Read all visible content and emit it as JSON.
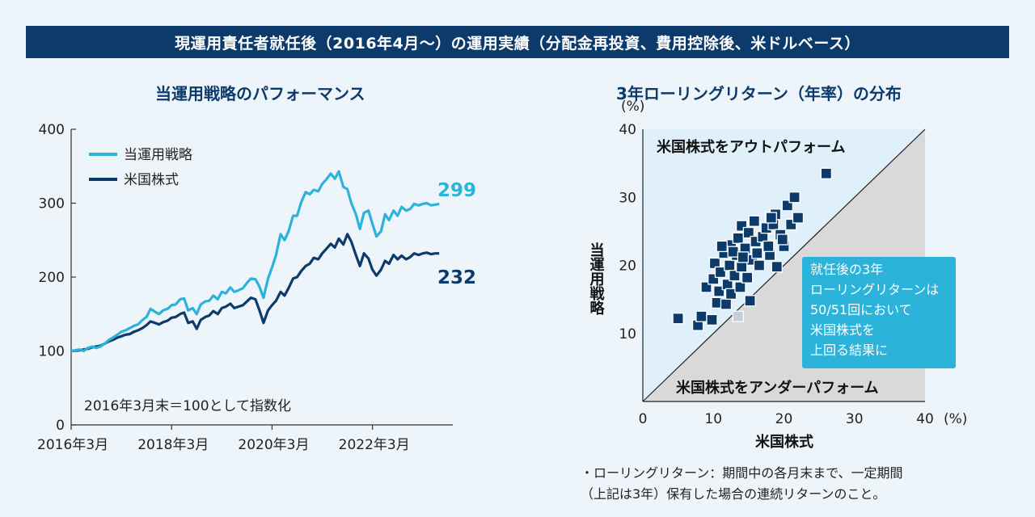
{
  "banner": "現運用責任者就任後（2016年4月〜）の運用実績（分配金再投資、費用控除後、米ドルベース）",
  "colors": {
    "banner_bg": "#0c3a6b",
    "strategy": "#2bb3d9",
    "us_stock": "#0c3a6b",
    "outperform_bg": "#dff0fa",
    "underperform_bg": "#d9d9d9",
    "callout_bg": "#2bb3d9"
  },
  "chart_data": [
    {
      "type": "line",
      "title": "当運用戦略のパフォーマンス",
      "ylim": [
        0,
        400
      ],
      "yticks": [
        "0",
        "100",
        "200",
        "300",
        "400"
      ],
      "xtick_labels": [
        "2016年3月",
        "2018年3月",
        "2020年3月",
        "2022年3月"
      ],
      "xtick_years": [
        0,
        2,
        4,
        6
      ],
      "annotation": "2016年3月末＝100として指数化",
      "series": [
        {
          "name": "当運用戦略",
          "end_label": "299",
          "x": [
            0,
            0.17,
            0.25,
            0.33,
            0.42,
            0.5,
            0.58,
            0.67,
            0.75,
            0.83,
            0.92,
            1.0,
            1.08,
            1.17,
            1.25,
            1.33,
            1.42,
            1.5,
            1.58,
            1.67,
            1.75,
            1.83,
            1.92,
            2.0,
            2.08,
            2.17,
            2.25,
            2.33,
            2.42,
            2.5,
            2.58,
            2.67,
            2.75,
            2.83,
            2.92,
            3.0,
            3.08,
            3.17,
            3.25,
            3.33,
            3.42,
            3.5,
            3.58,
            3.67,
            3.75,
            3.83,
            3.92,
            4.0,
            4.08,
            4.17,
            4.25,
            4.33,
            4.42,
            4.5,
            4.58,
            4.67,
            4.75,
            4.83,
            4.92,
            5.0,
            5.08,
            5.17,
            5.25,
            5.33,
            5.42,
            5.5,
            5.58,
            5.67,
            5.75,
            5.83,
            5.92,
            6.0,
            6.08,
            6.17,
            6.25,
            6.33,
            6.42,
            6.5,
            6.58,
            6.67,
            6.75,
            6.83,
            6.92,
            7.0,
            7.08,
            7.17,
            7.25,
            7.33
          ],
          "values": [
            100,
            102,
            100,
            104,
            106,
            104,
            106,
            110,
            115,
            118,
            122,
            126,
            128,
            131,
            134,
            136,
            142,
            146,
            157,
            153,
            150,
            155,
            157,
            162,
            163,
            170,
            171,
            155,
            158,
            150,
            163,
            167,
            168,
            175,
            170,
            180,
            178,
            186,
            180,
            182,
            185,
            192,
            198,
            197,
            187,
            172,
            198,
            213,
            230,
            258,
            250,
            262,
            283,
            283,
            301,
            315,
            312,
            318,
            316,
            326,
            332,
            340,
            333,
            343,
            322,
            319,
            300,
            285,
            265,
            287,
            290,
            272,
            255,
            262,
            285,
            277,
            290,
            283,
            295,
            290,
            292,
            299,
            297,
            299,
            300,
            297,
            298,
            299
          ]
        },
        {
          "name": "米国株式",
          "end_label": "232",
          "x": [
            0,
            0.17,
            0.25,
            0.33,
            0.42,
            0.5,
            0.58,
            0.67,
            0.75,
            0.83,
            0.92,
            1.0,
            1.08,
            1.17,
            1.25,
            1.33,
            1.42,
            1.5,
            1.58,
            1.67,
            1.75,
            1.83,
            1.92,
            2.0,
            2.08,
            2.17,
            2.25,
            2.33,
            2.42,
            2.5,
            2.58,
            2.67,
            2.75,
            2.83,
            2.92,
            3.0,
            3.08,
            3.17,
            3.25,
            3.33,
            3.42,
            3.5,
            3.58,
            3.67,
            3.75,
            3.83,
            3.92,
            4.0,
            4.08,
            4.17,
            4.25,
            4.33,
            4.42,
            4.5,
            4.58,
            4.67,
            4.75,
            4.83,
            4.92,
            5.0,
            5.08,
            5.17,
            5.25,
            5.33,
            5.42,
            5.5,
            5.58,
            5.67,
            5.75,
            5.83,
            5.92,
            6.0,
            6.08,
            6.17,
            6.25,
            6.33,
            6.42,
            6.5,
            6.58,
            6.67,
            6.75,
            6.83,
            6.92,
            7.0,
            7.08,
            7.17,
            7.25,
            7.33
          ],
          "values": [
            100,
            101,
            102,
            103,
            105,
            106,
            107,
            110,
            113,
            115,
            118,
            120,
            122,
            123,
            126,
            128,
            131,
            135,
            140,
            138,
            136,
            139,
            141,
            145,
            146,
            150,
            152,
            138,
            140,
            130,
            142,
            146,
            148,
            154,
            150,
            158,
            160,
            164,
            158,
            160,
            162,
            167,
            172,
            170,
            155,
            138,
            155,
            162,
            168,
            180,
            175,
            185,
            198,
            200,
            208,
            215,
            218,
            226,
            224,
            232,
            238,
            245,
            240,
            252,
            244,
            258,
            248,
            230,
            215,
            232,
            225,
            210,
            202,
            210,
            222,
            218,
            230,
            224,
            229,
            224,
            227,
            232,
            230,
            232,
            233,
            231,
            232,
            232
          ]
        }
      ]
    },
    {
      "type": "scatter",
      "title": "3年ローリングリターン（年率）の分布",
      "xlabel": "米国株式",
      "ylabel": "当運用戦略",
      "unit_label": "(%)",
      "xlim": [
        0,
        40
      ],
      "ylim": [
        0,
        40
      ],
      "xticks": [
        "0",
        "10",
        "20",
        "30",
        "40"
      ],
      "xtick_unit": "(%)",
      "yticks": [
        "10",
        "20",
        "30",
        "40"
      ],
      "region_top": "米国株式をアウトパフォーム",
      "region_bottom": "米国株式をアンダーパフォーム",
      "callout": [
        "就任後の3年",
        "ローリングリターンは",
        "50/51回において",
        "米国株式を",
        "上回る結果に"
      ],
      "outperform_points": [
        {
          "x": 5.0,
          "y": 12.2
        },
        {
          "x": 7.8,
          "y": 11.2
        },
        {
          "x": 8.3,
          "y": 12.5
        },
        {
          "x": 9.0,
          "y": 16.8
        },
        {
          "x": 9.8,
          "y": 12.0
        },
        {
          "x": 10.0,
          "y": 18.0
        },
        {
          "x": 10.2,
          "y": 20.3
        },
        {
          "x": 10.5,
          "y": 14.5
        },
        {
          "x": 10.8,
          "y": 16.2
        },
        {
          "x": 11.0,
          "y": 19.0
        },
        {
          "x": 11.5,
          "y": 21.8
        },
        {
          "x": 11.8,
          "y": 14.3
        },
        {
          "x": 12.0,
          "y": 17.2
        },
        {
          "x": 12.3,
          "y": 20.0
        },
        {
          "x": 12.5,
          "y": 23.0
        },
        {
          "x": 12.5,
          "y": 15.8
        },
        {
          "x": 13.0,
          "y": 18.5
        },
        {
          "x": 13.3,
          "y": 21.5
        },
        {
          "x": 13.5,
          "y": 24.0
        },
        {
          "x": 13.8,
          "y": 16.8
        },
        {
          "x": 14.0,
          "y": 19.8
        },
        {
          "x": 14.0,
          "y": 25.8
        },
        {
          "x": 14.5,
          "y": 22.5
        },
        {
          "x": 14.8,
          "y": 18.2
        },
        {
          "x": 15.0,
          "y": 24.8
        },
        {
          "x": 15.2,
          "y": 14.8
        },
        {
          "x": 15.5,
          "y": 20.8
        },
        {
          "x": 16.0,
          "y": 23.5
        },
        {
          "x": 16.5,
          "y": 20.0
        },
        {
          "x": 17.0,
          "y": 24.2
        },
        {
          "x": 17.5,
          "y": 25.5
        },
        {
          "x": 18.0,
          "y": 21.5
        },
        {
          "x": 18.5,
          "y": 26.0
        },
        {
          "x": 18.8,
          "y": 27.5
        },
        {
          "x": 19.0,
          "y": 19.8
        },
        {
          "x": 19.5,
          "y": 24.5
        },
        {
          "x": 20.0,
          "y": 22.8
        },
        {
          "x": 20.5,
          "y": 28.8
        },
        {
          "x": 21.0,
          "y": 26.0
        },
        {
          "x": 21.5,
          "y": 30.0
        },
        {
          "x": 22.0,
          "y": 27.0
        },
        {
          "x": 26.0,
          "y": 33.5
        },
        {
          "x": 11.2,
          "y": 22.8
        },
        {
          "x": 12.8,
          "y": 22.0
        },
        {
          "x": 15.8,
          "y": 26.5
        },
        {
          "x": 17.8,
          "y": 22.8
        },
        {
          "x": 16.2,
          "y": 21.8
        },
        {
          "x": 19.8,
          "y": 23.8
        },
        {
          "x": 14.2,
          "y": 21.2
        },
        {
          "x": 18.2,
          "y": 27.0
        }
      ],
      "underperform_points": [
        {
          "x": 13.5,
          "y": 12.5
        }
      ]
    }
  ],
  "notes": [
    "・ローリングリターン：期間中の各月末まで、一定期間",
    "（上記は3年）保有した場合の連続リターンのこと。"
  ]
}
